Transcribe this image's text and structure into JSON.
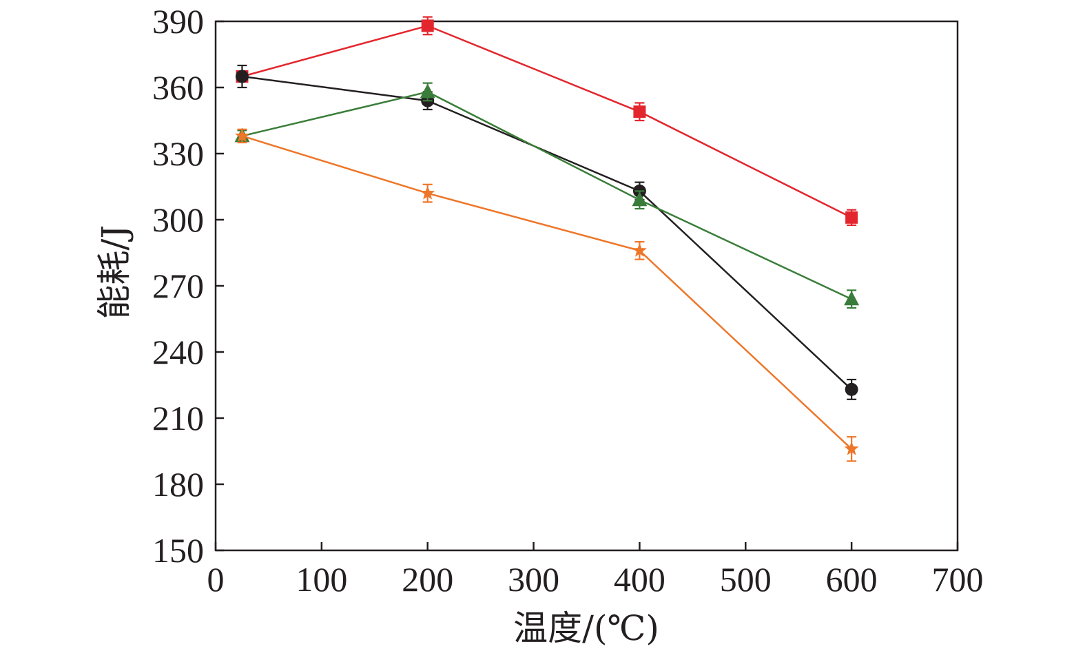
{
  "chart_data": {
    "type": "line",
    "title": "",
    "xlabel": "温度/(℃)",
    "ylabel": "能耗/J",
    "xlim": [
      0,
      700
    ],
    "ylim": [
      150,
      390
    ],
    "xticks": [
      0,
      100,
      200,
      300,
      400,
      500,
      600,
      700
    ],
    "yticks": [
      150,
      180,
      210,
      240,
      270,
      300,
      330,
      360,
      390
    ],
    "grid": false,
    "legend": "none",
    "x": [
      25,
      200,
      400,
      600
    ],
    "series": [
      {
        "name": "series-red-square",
        "color": "#e3262d",
        "marker": "square",
        "values": [
          365,
          388,
          349,
          301
        ],
        "errors": [
          2,
          4,
          4,
          3.5
        ]
      },
      {
        "name": "series-black-circle",
        "color": "#231f20",
        "marker": "circle",
        "values": [
          365,
          354,
          313,
          223
        ],
        "errors": [
          5,
          4,
          4,
          4.5
        ]
      },
      {
        "name": "series-green-triangle",
        "color": "#3a7d3a",
        "marker": "triangle",
        "values": [
          338,
          358,
          309,
          264
        ],
        "errors": [
          2.5,
          4,
          4,
          4
        ]
      },
      {
        "name": "series-orange-star",
        "color": "#ee7629",
        "marker": "star",
        "values": [
          338,
          312,
          286,
          196
        ],
        "errors": [
          3,
          4,
          4,
          5.5
        ]
      }
    ]
  }
}
